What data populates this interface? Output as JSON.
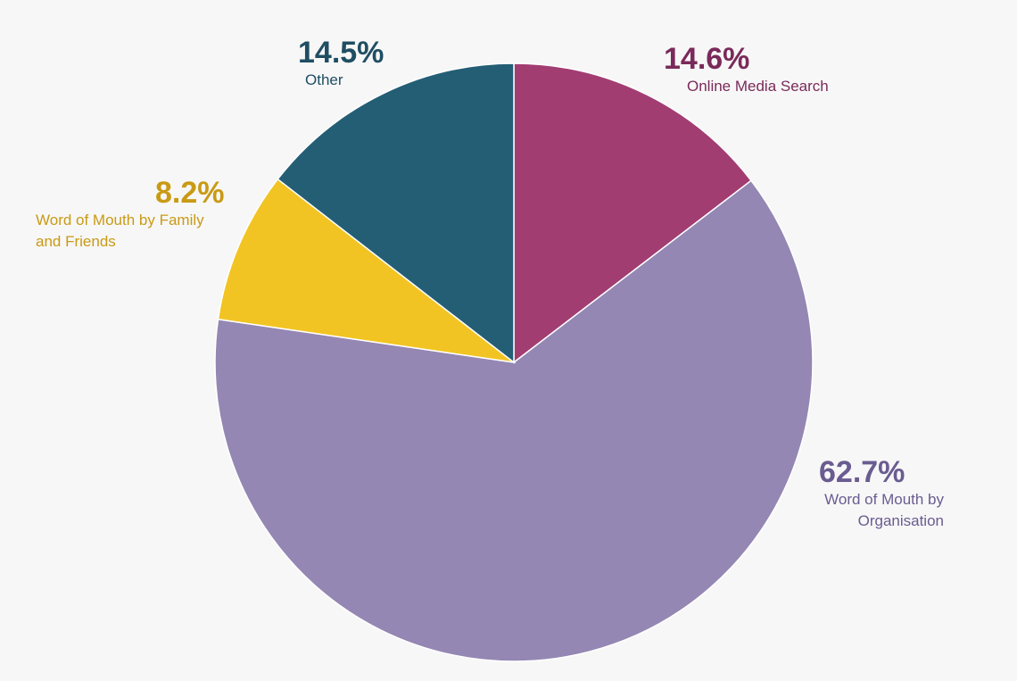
{
  "chart_data": {
    "type": "pie",
    "slices": [
      {
        "label": "Online Media Search",
        "value": 14.6,
        "display": "14.6%",
        "color": "#a23d72",
        "text_color": "#7a2a5a"
      },
      {
        "label": "Word of Mouth by Organisation",
        "value": 62.7,
        "display": "62.7%",
        "color": "#9487b3",
        "text_color": "#6a5c91"
      },
      {
        "label": "Word of Mouth by Family and Friends",
        "value": 8.2,
        "display": "8.2%",
        "color": "#f2c423",
        "text_color": "#c99a14"
      },
      {
        "label": "Other",
        "value": 14.5,
        "display": "14.5%",
        "color": "#245e75",
        "text_color": "#1f4e63"
      }
    ],
    "start": "12 o'clock",
    "direction": "clockwise",
    "legend": "none",
    "title": ""
  },
  "labels": {
    "online": {
      "pct": "14.6%",
      "name": "Online Media Search"
    },
    "org": {
      "pct": "62.7%",
      "name_line1": "Word of Mouth by",
      "name_line2": "Organisation"
    },
    "family": {
      "pct": "8.2%",
      "name_line1": "Word of Mouth by Family",
      "name_line2": "and Friends"
    },
    "other": {
      "pct": "14.5%",
      "name": "Other"
    }
  }
}
